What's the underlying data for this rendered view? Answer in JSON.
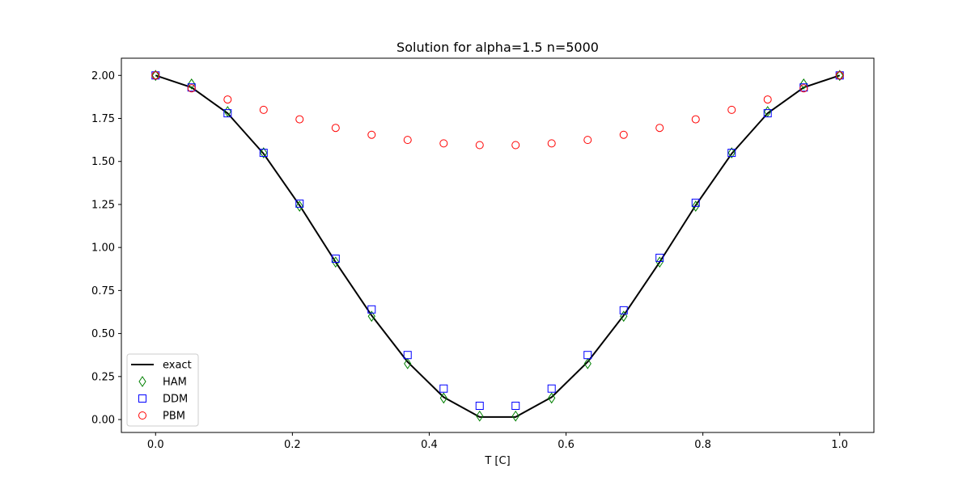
{
  "chart_data": {
    "type": "line",
    "title": "Solution for alpha=1.5 n=5000",
    "xlabel": "T [C]",
    "ylabel": "",
    "xlim": [
      -0.05,
      1.05
    ],
    "ylim": [
      -0.075,
      2.1
    ],
    "xticks": [
      0.0,
      0.2,
      0.4,
      0.6,
      0.8,
      1.0
    ],
    "xtick_labels": [
      "0.0",
      "0.2",
      "0.4",
      "0.6",
      "0.8",
      "1.0"
    ],
    "yticks": [
      0.0,
      0.25,
      0.5,
      0.75,
      1.0,
      1.25,
      1.5,
      1.75,
      2.0
    ],
    "ytick_labels": [
      "0.00",
      "0.25",
      "0.50",
      "0.75",
      "1.00",
      "1.25",
      "1.50",
      "1.75",
      "2.00"
    ],
    "grid": false,
    "legend_position": "lower-left",
    "x": [
      0.0,
      0.0526,
      0.1053,
      0.1579,
      0.2105,
      0.2632,
      0.3158,
      0.3684,
      0.4211,
      0.4737,
      0.5263,
      0.5789,
      0.6316,
      0.6842,
      0.7368,
      0.7895,
      0.8421,
      0.8947,
      0.9474,
      1.0
    ],
    "series": [
      {
        "name": "exact",
        "style": "line",
        "color": "#000000",
        "values": [
          2.0,
          1.93,
          1.78,
          1.545,
          1.245,
          0.915,
          0.605,
          0.335,
          0.13,
          0.015,
          0.015,
          0.13,
          0.335,
          0.605,
          0.915,
          1.245,
          1.545,
          1.78,
          1.93,
          2.0
        ]
      },
      {
        "name": "HAM",
        "style": "diamond",
        "color": "#008000",
        "values": [
          2.0,
          1.95,
          1.79,
          1.55,
          1.24,
          0.915,
          0.6,
          0.325,
          0.125,
          0.02,
          0.02,
          0.125,
          0.325,
          0.6,
          0.915,
          1.24,
          1.55,
          1.79,
          1.95,
          2.0
        ]
      },
      {
        "name": "DDM",
        "style": "square",
        "color": "#0000ff",
        "values": [
          2.0,
          1.93,
          1.78,
          1.55,
          1.255,
          0.935,
          0.64,
          0.375,
          0.18,
          0.08,
          0.08,
          0.18,
          0.375,
          0.635,
          0.94,
          1.26,
          1.55,
          1.78,
          1.93,
          2.0
        ]
      },
      {
        "name": "PBM",
        "style": "circle",
        "color": "#ff0000",
        "values": [
          2.0,
          1.925,
          1.86,
          1.8,
          1.745,
          1.695,
          1.655,
          1.625,
          1.605,
          1.595,
          1.595,
          1.605,
          1.625,
          1.655,
          1.695,
          1.745,
          1.8,
          1.86,
          1.925,
          2.0
        ]
      }
    ]
  }
}
